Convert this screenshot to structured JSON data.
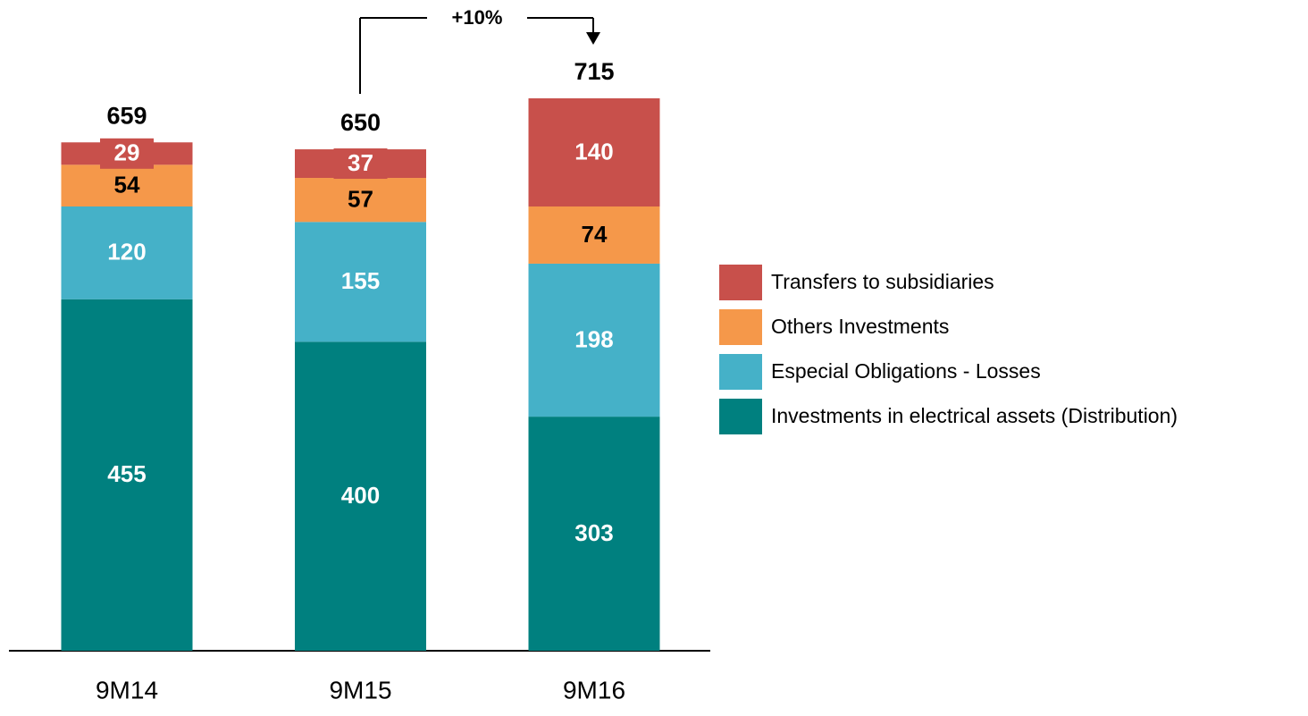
{
  "chart_data": {
    "type": "bar",
    "stacked": true,
    "categories": [
      "9M14",
      "9M15",
      "9M16"
    ],
    "series": [
      {
        "name": "Investments in electrical assets (Distribution)",
        "color": "#00807f",
        "label_color": "#ffffff",
        "values": [
          455,
          400,
          303
        ]
      },
      {
        "name": "Especial Obligations - Losses",
        "color": "#45b1c8",
        "label_color": "#ffffff",
        "values": [
          120,
          155,
          198
        ]
      },
      {
        "name": "Others Investments",
        "color": "#f5984a",
        "label_color": "#000000",
        "values": [
          54,
          57,
          74
        ]
      },
      {
        "name": "Transfers to subsidiaries",
        "color": "#c8504b",
        "label_color": "#ffffff",
        "values": [
          29,
          37,
          140
        ]
      }
    ],
    "totals": [
      659,
      650,
      715
    ],
    "annotation": "+10%",
    "legend": "right"
  }
}
